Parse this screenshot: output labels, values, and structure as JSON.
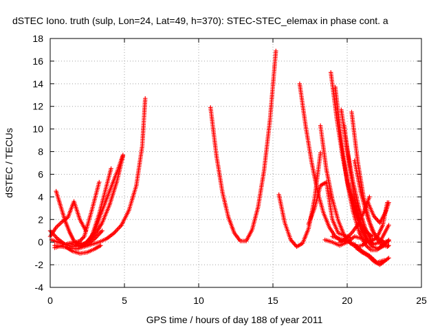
{
  "chart_data": {
    "type": "scatter",
    "title": "dSTEC Iono. truth (sulp, Lon=24, Lat=49, h=370): STEC-STEC_elemax in phase cont. a",
    "xlabel": "GPS time / hours of day 188 of year 2011",
    "ylabel": "dSTEC  / TECUs",
    "xlim": [
      0,
      25
    ],
    "ylim": [
      -4,
      18
    ],
    "xticks": [
      0,
      5,
      10,
      15,
      20,
      25
    ],
    "yticks": [
      -4,
      -2,
      0,
      2,
      4,
      6,
      8,
      10,
      12,
      14,
      16,
      18
    ],
    "grid": true,
    "legend": "none",
    "marker": "+",
    "color": "#ff0000",
    "series": [
      {
        "x": [
          0.0,
          0.5,
          1.0,
          1.5,
          2.0,
          2.5,
          3.0,
          3.5,
          4.0,
          4.5,
          4.9
        ],
        "y": [
          1.0,
          0.3,
          -0.2,
          -0.4,
          -0.3,
          0.0,
          0.6,
          1.7,
          3.3,
          5.4,
          7.6
        ]
      },
      {
        "x": [
          0.3,
          0.8,
          1.3,
          1.8,
          2.3,
          2.8,
          3.3,
          3.8,
          4.3,
          4.8,
          5.3,
          5.8,
          6.2,
          6.4
        ],
        "y": [
          -0.3,
          -0.4,
          -0.5,
          -0.6,
          -0.4,
          -0.2,
          0.0,
          0.3,
          0.8,
          1.5,
          2.8,
          5.0,
          8.5,
          12.7
        ]
      },
      {
        "x": [
          0.4,
          0.7,
          1.0,
          1.3,
          1.6,
          2.0,
          2.5,
          3.0,
          3.5
        ],
        "y": [
          4.5,
          3.2,
          1.9,
          0.9,
          0.1,
          -0.3,
          -0.2,
          0.3,
          1.0
        ]
      },
      {
        "x": [
          0.0,
          0.4,
          0.8,
          1.2,
          1.6,
          2.0,
          2.4
        ],
        "y": [
          0.5,
          1.3,
          1.8,
          2.2,
          3.6,
          2.0,
          1.0
        ]
      },
      {
        "x": [
          1.5,
          2.0,
          2.5,
          3.0,
          3.5,
          4.0,
          4.5,
          4.9
        ],
        "y": [
          -0.2,
          -0.4,
          0.0,
          1.0,
          2.8,
          4.5,
          6.2,
          7.7
        ]
      },
      {
        "x": [
          0.1,
          0.5,
          1.0,
          1.5,
          2.0,
          2.3,
          2.8,
          3.3
        ],
        "y": [
          0.2,
          0.0,
          -0.2,
          -0.1,
          0.1,
          0.5,
          2.8,
          5.3
        ]
      },
      {
        "x": [
          0.3,
          0.8,
          1.3,
          1.8,
          2.3,
          2.8,
          3.3,
          3.8,
          4.1
        ],
        "y": [
          -0.5,
          -0.3,
          -0.1,
          0.0,
          -0.2,
          0.5,
          2.5,
          5.0,
          6.5
        ]
      },
      {
        "x": [
          1.0,
          1.5,
          2.0,
          2.5,
          3.0,
          3.4
        ],
        "y": [
          -0.4,
          -0.8,
          -1.0,
          -0.9,
          -0.6,
          -0.3
        ]
      },
      {
        "x": [
          10.8,
          11.2,
          11.6,
          12.0,
          12.4,
          12.8,
          13.2,
          13.6,
          14.0,
          14.4,
          14.8,
          15.2
        ],
        "y": [
          11.9,
          7.6,
          4.4,
          2.2,
          0.8,
          0.1,
          0.1,
          1.1,
          3.1,
          6.3,
          10.8,
          16.9
        ]
      },
      {
        "x": [
          15.4,
          15.8,
          16.2,
          16.6,
          17.0,
          17.4,
          17.8,
          18.2
        ],
        "y": [
          4.2,
          1.7,
          0.2,
          -0.4,
          -0.1,
          1.2,
          3.8,
          7.9
        ]
      },
      {
        "x": [
          16.8,
          17.2,
          17.6,
          18.0,
          18.4,
          18.8,
          19.2,
          19.6,
          20.0
        ],
        "y": [
          14.0,
          10.3,
          7.1,
          4.5,
          2.6,
          1.3,
          0.5,
          0.1,
          0.0
        ]
      },
      {
        "x": [
          17.4,
          17.8,
          18.2,
          18.6,
          19.0,
          19.4,
          19.8,
          20.2
        ],
        "y": [
          1.6,
          3.0,
          5.0,
          5.3,
          2.0,
          0.8,
          0.6,
          0.4
        ]
      },
      {
        "x": [
          18.2,
          18.6,
          19.0,
          19.4,
          19.8,
          20.2,
          20.6,
          21.0,
          21.4
        ],
        "y": [
          10.3,
          6.4,
          3.8,
          1.9,
          0.6,
          -0.1,
          -0.4,
          -0.3,
          0.1
        ]
      },
      {
        "x": [
          18.9,
          19.3,
          19.7,
          20.1,
          20.5,
          20.9,
          21.3,
          21.7,
          22.1,
          22.5,
          22.8
        ],
        "y": [
          15.0,
          10.9,
          7.5,
          4.8,
          2.7,
          1.2,
          0.2,
          -0.4,
          -0.6,
          -0.3,
          0.2
        ]
      },
      {
        "x": [
          19.2,
          19.6,
          20.0,
          20.4,
          20.8,
          21.2,
          21.6,
          22.0,
          22.4,
          22.8
        ],
        "y": [
          13.7,
          9.0,
          5.3,
          2.7,
          0.9,
          -0.2,
          -0.7,
          -0.7,
          -0.2,
          0.1
        ]
      },
      {
        "x": [
          19.6,
          20.0,
          20.4,
          20.8,
          21.2,
          21.6
        ],
        "y": [
          11.7,
          8.2,
          5.3,
          3.0,
          1.3,
          0.2
        ]
      },
      {
        "x": [
          19.8,
          20.2,
          20.6,
          21.0,
          21.4,
          21.8,
          22.2,
          22.6,
          22.8
        ],
        "y": [
          10.3,
          6.3,
          3.2,
          1.2,
          0.2,
          -0.2,
          0.0,
          1.0,
          1.5
        ]
      },
      {
        "x": [
          20.1,
          20.5,
          20.9,
          21.3,
          21.7
        ],
        "y": [
          5.2,
          3.0,
          1.6,
          0.9,
          0.5
        ]
      },
      {
        "x": [
          20.3,
          20.7,
          21.1,
          21.5,
          21.9,
          22.3,
          22.7,
          22.8
        ],
        "y": [
          11.5,
          7.2,
          4.0,
          1.8,
          0.5,
          -0.2,
          -0.4,
          -0.3
        ]
      },
      {
        "x": [
          20.5,
          20.9,
          21.3,
          21.7,
          22.1,
          22.5,
          22.8
        ],
        "y": [
          7.2,
          4.5,
          2.5,
          1.0,
          0.3,
          0.0,
          0.1
        ]
      },
      {
        "x": [
          18.5,
          19.0,
          19.5,
          20.0,
          20.5,
          21.0,
          21.5,
          22.0,
          22.4,
          22.7
        ],
        "y": [
          0.2,
          0.0,
          -0.3,
          0.0,
          0.5,
          0.3,
          0.0,
          0.4,
          1.5,
          3.5
        ]
      },
      {
        "x": [
          19.5,
          19.9,
          20.3,
          20.7,
          21.1,
          21.5
        ],
        "y": [
          0.0,
          0.3,
          0.8,
          1.5,
          2.6,
          4.0
        ]
      },
      {
        "x": [
          20.6,
          21.0,
          21.4,
          21.8,
          22.2,
          22.5,
          22.8
        ],
        "y": [
          -0.5,
          -0.9,
          -1.2,
          -1.7,
          -2.0,
          -1.7,
          -1.4
        ]
      },
      {
        "x": [
          19.0,
          19.5,
          20.0,
          20.5,
          21.0,
          21.5,
          22.0,
          22.5
        ],
        "y": [
          0.5,
          0.3,
          0.1,
          -0.2,
          -0.8,
          -1.2,
          -1.8,
          -1.6
        ]
      },
      {
        "x": [
          21.4,
          21.8,
          22.2,
          22.6,
          22.8
        ],
        "y": [
          3.5,
          2.3,
          1.7,
          2.7,
          3.5
        ]
      }
    ]
  }
}
